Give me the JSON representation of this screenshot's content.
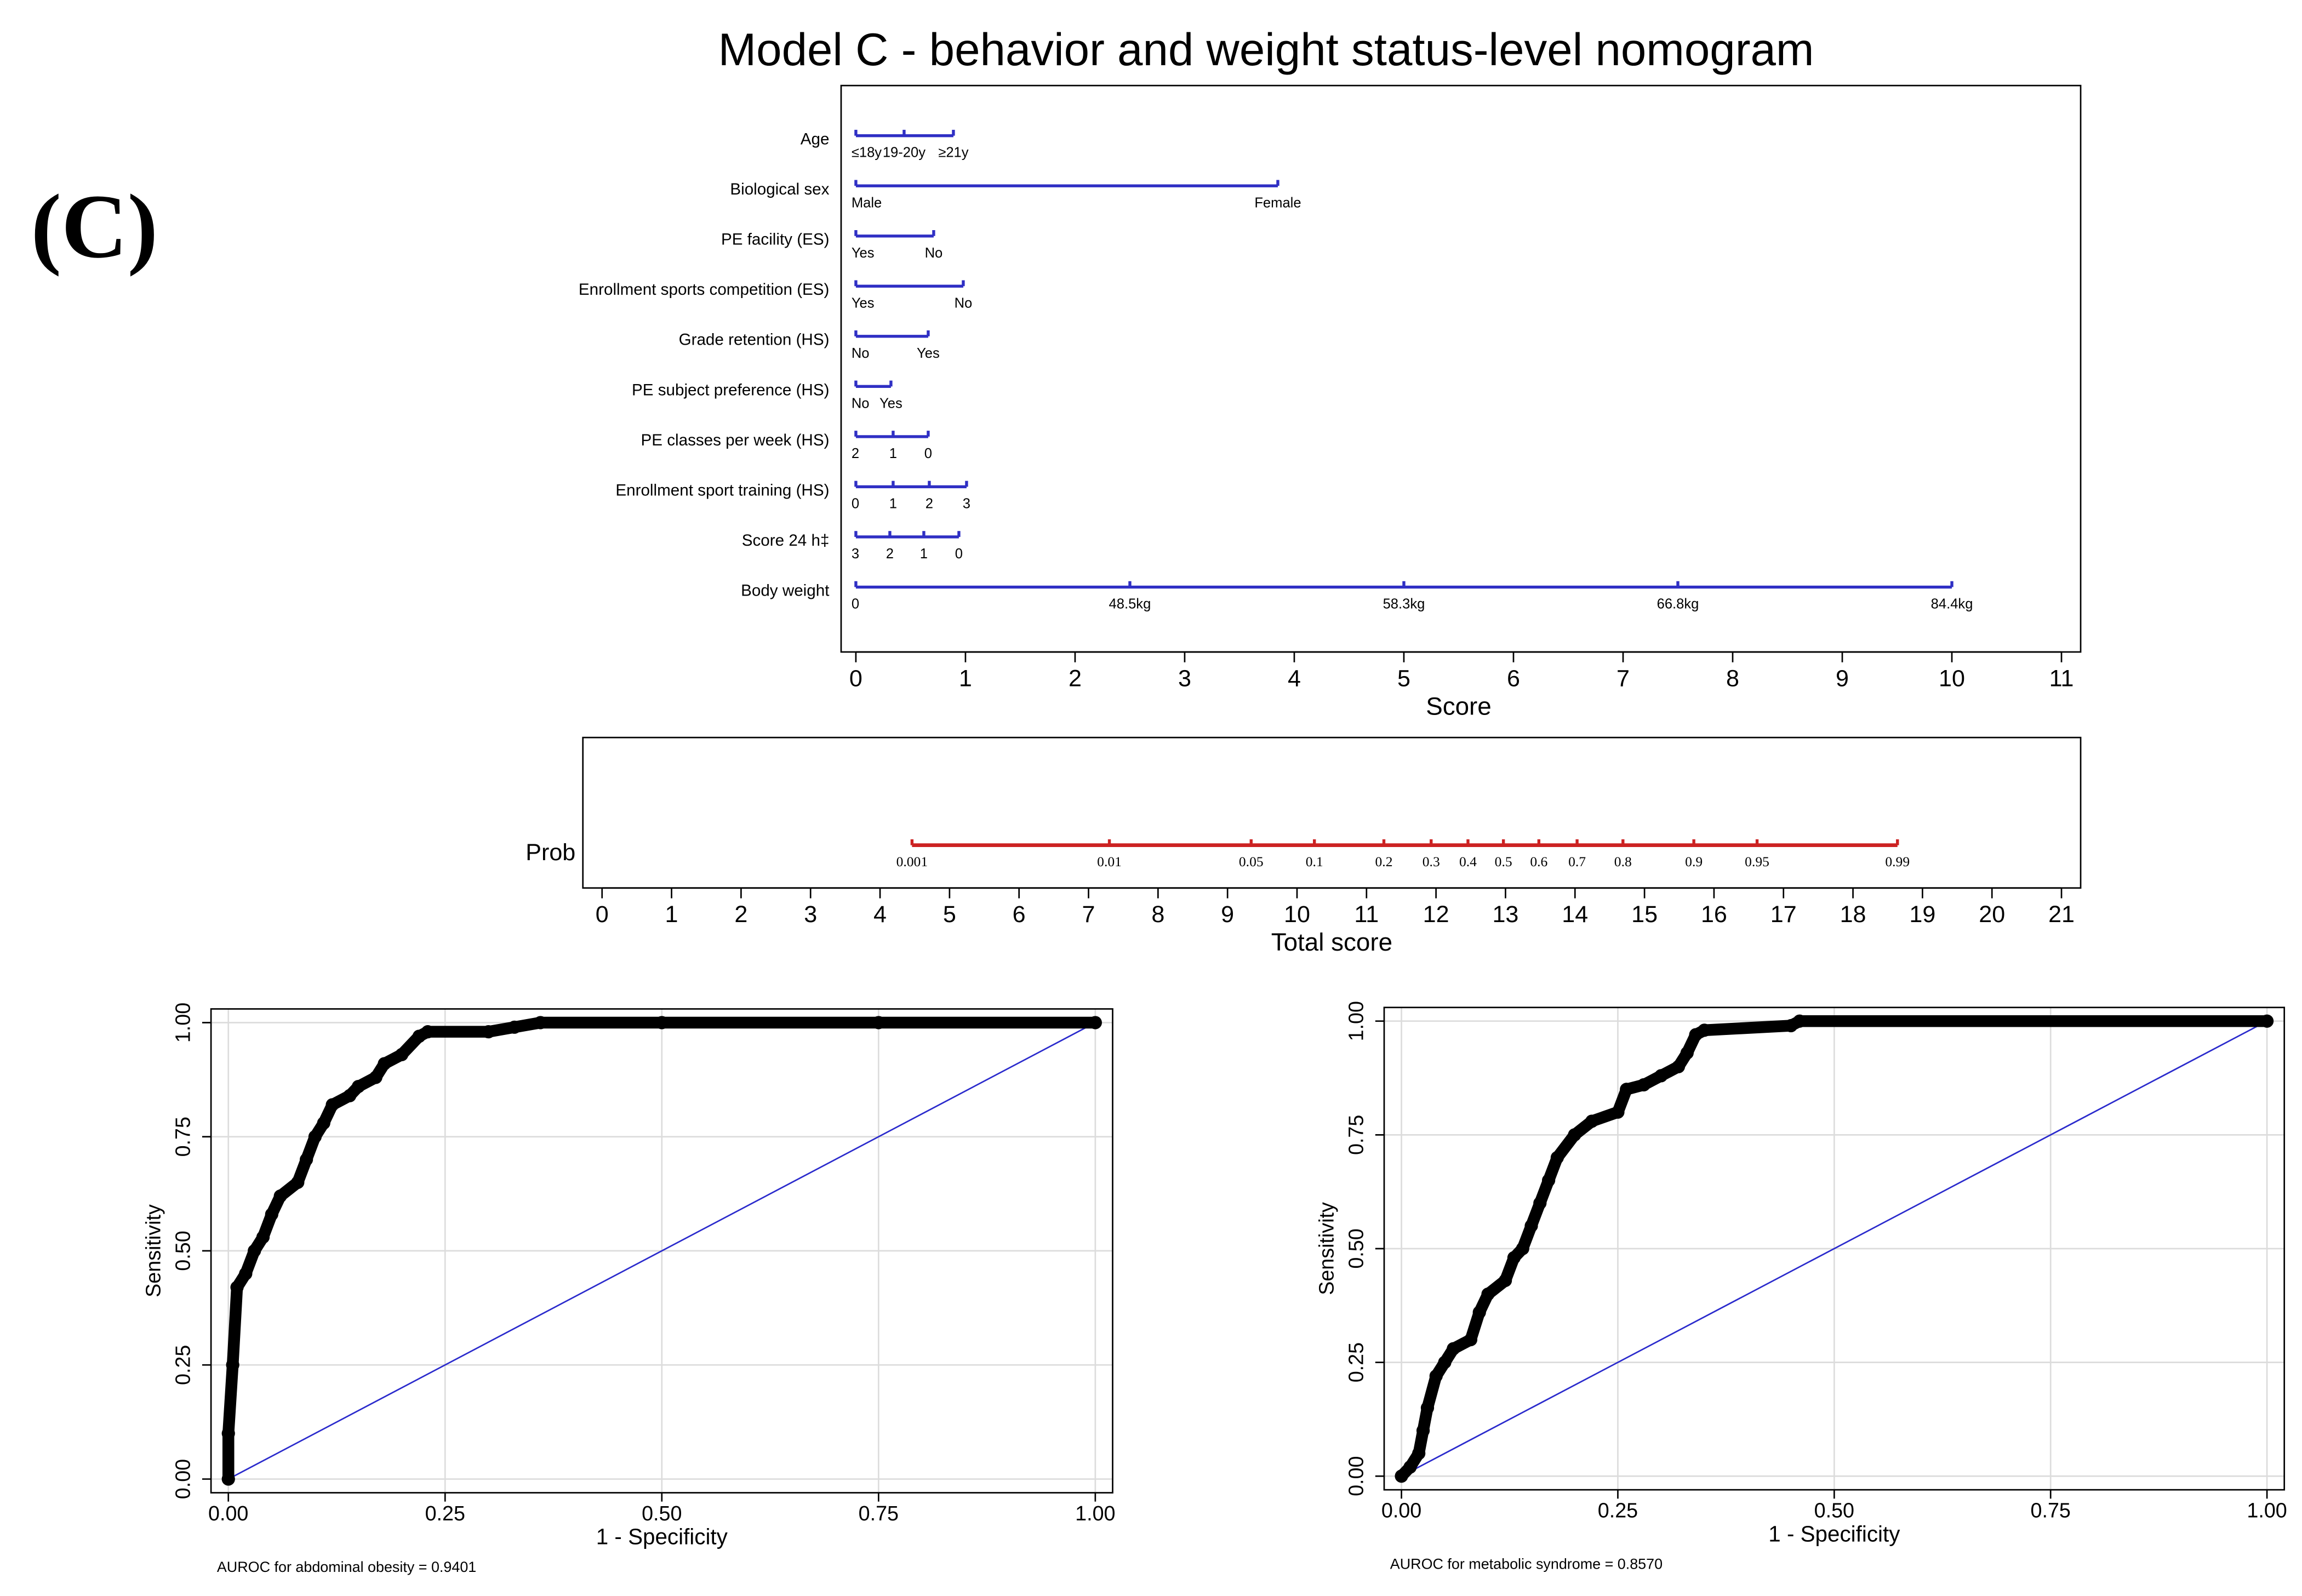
{
  "panel_label": "(C)",
  "chart_data": [
    {
      "type": "nomogram",
      "title": "Model C - behavior and weight status-level nomogram",
      "xlabel": "Score",
      "xlim": [
        0,
        11
      ],
      "xticks": [
        0,
        1,
        2,
        3,
        4,
        5,
        6,
        7,
        8,
        9,
        10,
        11
      ],
      "color": "#2f2fc4",
      "rows": [
        {
          "name": "Age",
          "labels": [
            "≤18y",
            "19-20y",
            "≥21y"
          ],
          "scores": [
            0,
            0.44,
            0.89
          ]
        },
        {
          "name": "Biological sex",
          "labels": [
            "Male",
            "Female"
          ],
          "scores": [
            0,
            3.85
          ]
        },
        {
          "name": "PE facility (ES)",
          "labels": [
            "Yes",
            "No"
          ],
          "scores": [
            0,
            0.71
          ]
        },
        {
          "name": "Enrollment sports competition (ES)",
          "labels": [
            "Yes",
            "No"
          ],
          "scores": [
            0,
            0.98
          ]
        },
        {
          "name": "Grade retention (HS)",
          "labels": [
            "No",
            "Yes"
          ],
          "scores": [
            0,
            0.66
          ]
        },
        {
          "name": "PE subject preference (HS)",
          "labels": [
            "No",
            "Yes"
          ],
          "scores": [
            0,
            0.32
          ]
        },
        {
          "name": "PE classes per week (HS)",
          "labels": [
            "2",
            "1",
            "0"
          ],
          "scores": [
            0,
            0.34,
            0.66
          ]
        },
        {
          "name": "Enrollment sport training (HS)",
          "labels": [
            "0",
            "1",
            "2",
            "3"
          ],
          "scores": [
            0,
            0.34,
            0.67,
            1.01
          ]
        },
        {
          "name": "Score 24 h‡",
          "labels": [
            "3",
            "2",
            "1",
            "0"
          ],
          "scores": [
            0,
            0.31,
            0.62,
            0.94
          ]
        },
        {
          "name": "Body weight",
          "labels": [
            "0",
            "48.5kg",
            "58.3kg",
            "66.8kg",
            "84.4kg"
          ],
          "scores": [
            0,
            2.5,
            5,
            7.5,
            10
          ]
        }
      ]
    },
    {
      "type": "probability-scale",
      "ylabel": "Prob",
      "xlabel": "Total score",
      "xlim": [
        0,
        21
      ],
      "xticks": [
        0,
        1,
        2,
        3,
        4,
        5,
        6,
        7,
        8,
        9,
        10,
        11,
        12,
        13,
        14,
        15,
        16,
        17,
        18,
        19,
        20,
        21
      ],
      "color": "#cc2222",
      "probabilities": [
        0.001,
        0.01,
        0.05,
        0.1,
        0.2,
        0.3,
        0.4,
        0.5,
        0.6,
        0.7,
        0.8,
        0.9,
        0.95,
        0.99
      ],
      "total_scores": [
        4.46,
        7.3,
        9.34,
        10.25,
        11.25,
        11.93,
        12.46,
        12.97,
        13.48,
        14.03,
        14.69,
        15.71,
        16.62,
        18.64
      ]
    },
    {
      "type": "line",
      "xlabel": "1 - Specificity",
      "ylabel": "Sensitivity",
      "note": "AUROC for abdominal obesity = 0.9401",
      "xlim": [
        -0.02,
        1.02
      ],
      "ylim": [
        -0.03,
        1.03
      ],
      "xticks": [
        {
          "value": 0,
          "label": "0.00"
        },
        {
          "value": 0.25,
          "label": "0.25"
        },
        {
          "value": 0.5,
          "label": "0.50"
        },
        {
          "value": 0.75,
          "label": "0.75"
        },
        {
          "value": 1,
          "label": "1.00"
        }
      ],
      "yticks": [
        {
          "value": 0,
          "label": "0.00"
        },
        {
          "value": 0.25,
          "label": "0.25"
        },
        {
          "value": 0.5,
          "label": "0.50"
        },
        {
          "value": 0.75,
          "label": "0.75"
        },
        {
          "value": 1,
          "label": "1.00"
        }
      ],
      "grid": true,
      "color": "#000000",
      "reference_color": "#2a2acc",
      "x": [
        0,
        0,
        0.005,
        0.01,
        0.02,
        0.03,
        0.04,
        0.05,
        0.06,
        0.08,
        0.09,
        0.1,
        0.11,
        0.12,
        0.14,
        0.15,
        0.17,
        0.18,
        0.2,
        0.22,
        0.23,
        0.3,
        0.33,
        0.36,
        0.5,
        0.75,
        1
      ],
      "values": [
        0,
        0.1,
        0.25,
        0.42,
        0.45,
        0.5,
        0.53,
        0.58,
        0.62,
        0.65,
        0.7,
        0.75,
        0.78,
        0.82,
        0.84,
        0.86,
        0.88,
        0.91,
        0.93,
        0.97,
        0.98,
        0.98,
        0.99,
        1,
        1,
        1,
        1
      ]
    },
    {
      "type": "line",
      "xlabel": "1 - Specificity",
      "ylabel": "Sensitivity",
      "note": "AUROC for metabolic syndrome = 0.8570",
      "xlim": [
        -0.02,
        1.02
      ],
      "ylim": [
        -0.03,
        1.03
      ],
      "xticks": [
        {
          "value": 0,
          "label": "0.00"
        },
        {
          "value": 0.25,
          "label": "0.25"
        },
        {
          "value": 0.5,
          "label": "0.50"
        },
        {
          "value": 0.75,
          "label": "0.75"
        },
        {
          "value": 1,
          "label": "1.00"
        }
      ],
      "yticks": [
        {
          "value": 0,
          "label": "0.00"
        },
        {
          "value": 0.25,
          "label": "0.25"
        },
        {
          "value": 0.5,
          "label": "0.50"
        },
        {
          "value": 0.75,
          "label": "0.75"
        },
        {
          "value": 1,
          "label": "1.00"
        }
      ],
      "grid": true,
      "color": "#000000",
      "reference_color": "#2a2acc",
      "x": [
        0,
        0.01,
        0.02,
        0.025,
        0.03,
        0.04,
        0.05,
        0.06,
        0.08,
        0.09,
        0.1,
        0.12,
        0.13,
        0.14,
        0.15,
        0.16,
        0.17,
        0.18,
        0.2,
        0.22,
        0.25,
        0.26,
        0.28,
        0.3,
        0.32,
        0.33,
        0.34,
        0.35,
        0.45,
        0.46,
        1
      ],
      "values": [
        0,
        0.02,
        0.05,
        0.1,
        0.15,
        0.22,
        0.25,
        0.28,
        0.3,
        0.36,
        0.4,
        0.43,
        0.48,
        0.5,
        0.55,
        0.6,
        0.65,
        0.7,
        0.75,
        0.78,
        0.8,
        0.85,
        0.86,
        0.88,
        0.9,
        0.93,
        0.97,
        0.98,
        0.99,
        1,
        1
      ]
    }
  ]
}
